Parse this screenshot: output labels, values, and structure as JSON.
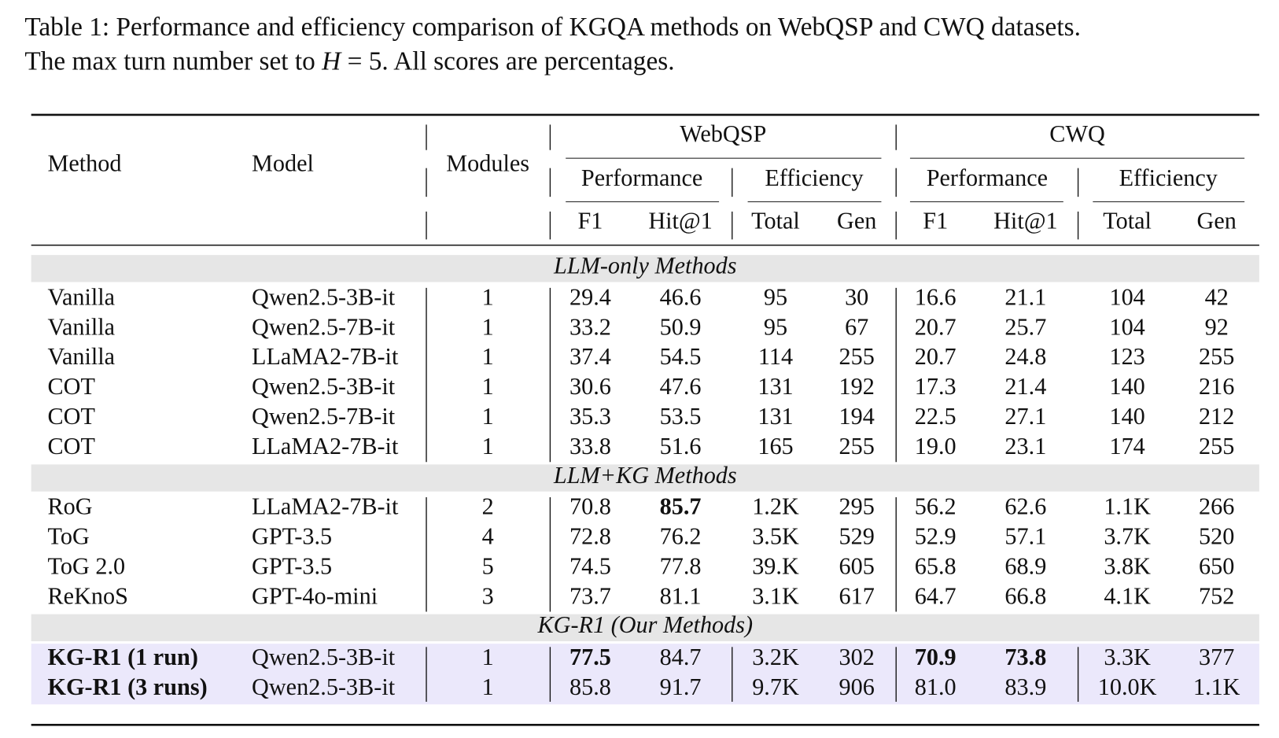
{
  "caption": {
    "line1": "Table 1: Performance and efficiency comparison of KGQA methods on WebQSP and CWQ datasets.",
    "line2": [
      "The max turn number set to ",
      "H",
      " = 5. All scores are percentages."
    ]
  },
  "table": {
    "header": {
      "method": "Method",
      "model": "Model",
      "modules": "Modules",
      "groups": [
        "WebQSP",
        "CWQ"
      ],
      "subgroups": [
        "Performance",
        "Efficiency",
        "Performance",
        "Efficiency"
      ],
      "columns": [
        "F1",
        "Hit@1",
        "Total",
        "Gen",
        "F1",
        "Hit@1",
        "Total",
        "Gen"
      ]
    },
    "sections": [
      {
        "title": "LLM-only Methods",
        "rows": [
          [
            "Vanilla",
            "Qwen2.5-3B-it",
            "1",
            "29.4",
            "46.6",
            "95",
            "30",
            "16.6",
            "21.1",
            "104",
            "42"
          ],
          [
            "Vanilla",
            "Qwen2.5-7B-it",
            "1",
            "33.2",
            "50.9",
            "95",
            "67",
            "20.7",
            "25.7",
            "104",
            "92"
          ],
          [
            "Vanilla",
            "LLaMA2-7B-it",
            "1",
            "37.4",
            "54.5",
            "114",
            "255",
            "20.7",
            "24.8",
            "123",
            "255"
          ],
          [
            "COT",
            "Qwen2.5-3B-it",
            "1",
            "30.6",
            "47.6",
            "131",
            "192",
            "17.3",
            "21.4",
            "140",
            "216"
          ],
          [
            "COT",
            "Qwen2.5-7B-it",
            "1",
            "35.3",
            "53.5",
            "131",
            "194",
            "22.5",
            "27.1",
            "140",
            "212"
          ],
          [
            "COT",
            "LLaMA2-7B-it",
            "1",
            "33.8",
            "51.6",
            "165",
            "255",
            "19.0",
            "23.1",
            "174",
            "255"
          ]
        ]
      },
      {
        "title": "LLM+KG Methods",
        "rows": [
          [
            "RoG",
            "LLaMA2-7B-it",
            "2",
            "70.8",
            "85.7",
            "1.2K",
            "295",
            "56.2",
            "62.6",
            "1.1K",
            "266"
          ],
          [
            "ToG",
            "GPT-3.5",
            "4",
            "72.8",
            "76.2",
            "3.5K",
            "529",
            "52.9",
            "57.1",
            "3.7K",
            "520"
          ],
          [
            "ToG 2.0",
            "GPT-3.5",
            "5",
            "74.5",
            "77.8",
            "39.K",
            "605",
            "65.8",
            "68.9",
            "3.8K",
            "650"
          ],
          [
            "ReKnoS",
            "GPT-4o-mini",
            "3",
            "73.7",
            "81.1",
            "3.1K",
            "617",
            "64.7",
            "66.8",
            "4.1K",
            "752"
          ]
        ]
      },
      {
        "title": "KG-R1 (Our Methods)",
        "rows": [
          [
            "KG-R1 (1 run)",
            "Qwen2.5-3B-it",
            "1",
            "77.5",
            "84.7",
            "3.2K",
            "302",
            "70.9",
            "73.8",
            "3.3K",
            "377"
          ],
          [
            "KG-R1 (3 runs)",
            "Qwen2.5-3B-it",
            "1",
            "85.8",
            "91.7",
            "9.7K",
            "906",
            "81.0",
            "83.9",
            "10.0K",
            "1.1K"
          ]
        ]
      }
    ]
  }
}
